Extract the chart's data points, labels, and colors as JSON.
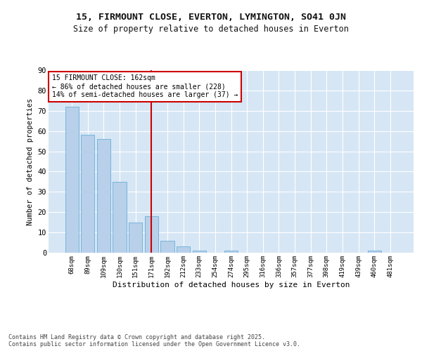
{
  "title": "15, FIRMOUNT CLOSE, EVERTON, LYMINGTON, SO41 0JN",
  "subtitle": "Size of property relative to detached houses in Everton",
  "xlabel": "Distribution of detached houses by size in Everton",
  "ylabel": "Number of detached properties",
  "categories": [
    "68sqm",
    "89sqm",
    "109sqm",
    "130sqm",
    "151sqm",
    "171sqm",
    "192sqm",
    "212sqm",
    "233sqm",
    "254sqm",
    "274sqm",
    "295sqm",
    "316sqm",
    "336sqm",
    "357sqm",
    "377sqm",
    "398sqm",
    "419sqm",
    "439sqm",
    "460sqm",
    "481sqm"
  ],
  "values": [
    72,
    58,
    56,
    35,
    15,
    18,
    6,
    3,
    1,
    0,
    1,
    0,
    0,
    0,
    0,
    0,
    0,
    0,
    0,
    1,
    0
  ],
  "bar_color": "#b8d0ea",
  "bar_edge_color": "#6aaed6",
  "vline_x": 5.0,
  "vline_color": "#cc0000",
  "annotation_text": "15 FIRMOUNT CLOSE: 162sqm\n← 86% of detached houses are smaller (228)\n14% of semi-detached houses are larger (37) →",
  "annotation_box_color": "#ffffff",
  "annotation_box_edge": "#cc0000",
  "ylim": [
    0,
    90
  ],
  "yticks": [
    0,
    10,
    20,
    30,
    40,
    50,
    60,
    70,
    80,
    90
  ],
  "background_color": "#d6e6f5",
  "grid_color": "#ffffff",
  "fig_background": "#ffffff",
  "footer": "Contains HM Land Registry data © Crown copyright and database right 2025.\nContains public sector information licensed under the Open Government Licence v3.0."
}
